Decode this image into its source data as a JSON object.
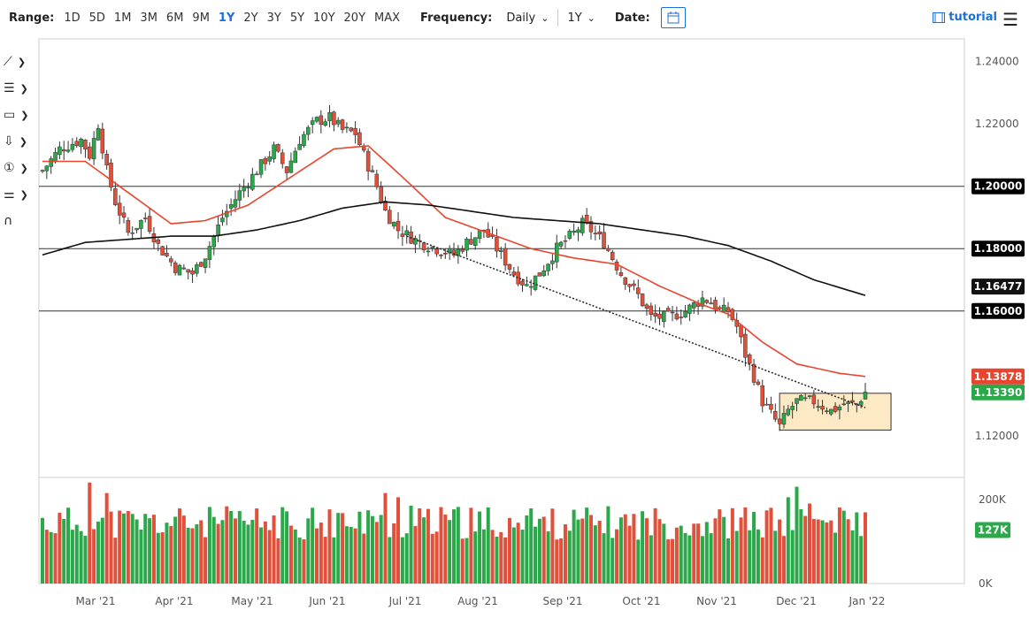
{
  "toolbar": {
    "range_label": "Range:",
    "ranges": [
      "1D",
      "5D",
      "1M",
      "3M",
      "6M",
      "9M",
      "1Y",
      "2Y",
      "3Y",
      "5Y",
      "10Y",
      "20Y",
      "MAX"
    ],
    "active_range": "1Y",
    "frequency_label": "Frequency:",
    "frequency_value": "Daily",
    "period_value": "1Y",
    "date_label": "Date:",
    "tutorial_label": "tutorial"
  },
  "sidebar": {
    "tools": [
      {
        "icon": "trendline-icon",
        "glyph": "⟋"
      },
      {
        "icon": "fibonacci-icon",
        "glyph": "☰"
      },
      {
        "icon": "rectangle-icon",
        "glyph": "▭"
      },
      {
        "icon": "arrow-down-icon",
        "glyph": "⇩"
      },
      {
        "icon": "numbered-marker-icon",
        "glyph": "①"
      },
      {
        "icon": "settings-sliders-icon",
        "glyph": "⚌"
      },
      {
        "icon": "magnet-icon",
        "glyph": "∩"
      }
    ]
  },
  "colors": {
    "up": "#2aa84a",
    "down": "#e0503a",
    "ma_fast": "#e8442e",
    "ma_slow": "#111111",
    "accent": "#1e6fd8",
    "box_fill": "#fde9c4",
    "volume_tag": "#2aa84a"
  },
  "chart_data": [
    {
      "type": "candlestick",
      "x_ticks": [
        "Mar '21",
        "Apr '21",
        "May '21",
        "Jun '21",
        "Jul '21",
        "Aug '21",
        "Sep '21",
        "Oct '21",
        "Nov '21",
        "Dec '21",
        "Jan '22"
      ],
      "y_ticks": [
        "1.24000",
        "1.22000",
        "1.20000",
        "1.18000",
        "1.12000"
      ],
      "ylim": [
        1.1066,
        1.2473
      ],
      "price_anchors": [
        [
          0,
          1.205
        ],
        [
          4,
          1.212
        ],
        [
          9,
          1.215
        ],
        [
          11,
          1.21
        ],
        [
          13,
          1.22
        ],
        [
          15,
          1.205
        ],
        [
          17,
          1.195
        ],
        [
          20,
          1.185
        ],
        [
          24,
          1.19
        ],
        [
          27,
          1.181
        ],
        [
          31,
          1.174
        ],
        [
          35,
          1.172
        ],
        [
          38,
          1.178
        ],
        [
          42,
          1.19
        ],
        [
          46,
          1.198
        ],
        [
          50,
          1.205
        ],
        [
          54,
          1.212
        ],
        [
          57,
          1.205
        ],
        [
          60,
          1.215
        ],
        [
          64,
          1.221
        ],
        [
          67,
          1.222
        ],
        [
          70,
          1.218
        ],
        [
          73,
          1.217
        ],
        [
          75,
          1.21
        ],
        [
          78,
          1.2
        ],
        [
          80,
          1.192
        ],
        [
          83,
          1.186
        ],
        [
          88,
          1.182
        ],
        [
          92,
          1.18
        ],
        [
          96,
          1.178
        ],
        [
          99,
          1.182
        ],
        [
          103,
          1.186
        ],
        [
          106,
          1.18
        ],
        [
          110,
          1.172
        ],
        [
          113,
          1.168
        ],
        [
          116,
          1.172
        ],
        [
          120,
          1.18
        ],
        [
          124,
          1.185
        ],
        [
          126,
          1.188
        ],
        [
          128,
          1.186
        ],
        [
          131,
          1.182
        ],
        [
          135,
          1.172
        ],
        [
          139,
          1.165
        ],
        [
          142,
          1.158
        ],
        [
          146,
          1.158
        ],
        [
          150,
          1.16
        ],
        [
          154,
          1.164
        ],
        [
          156,
          1.163
        ],
        [
          158,
          1.16
        ],
        [
          160,
          1.16
        ],
        [
          162,
          1.155
        ],
        [
          164,
          1.146
        ],
        [
          166,
          1.139
        ],
        [
          168,
          1.131
        ],
        [
          170,
          1.127
        ],
        [
          172,
          1.123
        ],
        [
          174,
          1.128
        ],
        [
          176,
          1.131
        ],
        [
          180,
          1.131
        ],
        [
          184,
          1.128
        ],
        [
          187,
          1.13
        ],
        [
          190,
          1.13
        ],
        [
          192,
          1.134
        ]
      ],
      "current_price": "1.13390",
      "horizontal_levels": [
        {
          "value": "1.20000",
          "price": 1.2
        },
        {
          "value": "1.18000",
          "price": 1.18
        },
        {
          "value": "1.16000",
          "price": 1.16
        }
      ],
      "series": [
        {
          "name": "",
          "kind": "moving_average_fast",
          "last_value": "1.13878",
          "anchors": [
            [
              0,
              1.208
            ],
            [
              10,
              1.208
            ],
            [
              20,
              1.198
            ],
            [
              30,
              1.188
            ],
            [
              38,
              1.189
            ],
            [
              48,
              1.194
            ],
            [
              58,
              1.203
            ],
            [
              68,
              1.212
            ],
            [
              76,
              1.213
            ],
            [
              84,
              1.203
            ],
            [
              94,
              1.19
            ],
            [
              104,
              1.185
            ],
            [
              114,
              1.18
            ],
            [
              124,
              1.177
            ],
            [
              134,
              1.175
            ],
            [
              144,
              1.168
            ],
            [
              154,
              1.162
            ],
            [
              160,
              1.159
            ],
            [
              168,
              1.15
            ],
            [
              176,
              1.143
            ],
            [
              186,
              1.14
            ],
            [
              192,
              1.139
            ]
          ]
        },
        {
          "name": "",
          "kind": "moving_average_slow",
          "last_value": "1.16477",
          "anchors": [
            [
              0,
              1.178
            ],
            [
              10,
              1.182
            ],
            [
              20,
              1.183
            ],
            [
              30,
              1.184
            ],
            [
              40,
              1.184
            ],
            [
              50,
              1.186
            ],
            [
              60,
              1.189
            ],
            [
              70,
              1.193
            ],
            [
              80,
              1.195
            ],
            [
              90,
              1.194
            ],
            [
              100,
              1.192
            ],
            [
              110,
              1.19
            ],
            [
              120,
              1.189
            ],
            [
              130,
              1.188
            ],
            [
              140,
              1.186
            ],
            [
              150,
              1.184
            ],
            [
              160,
              1.181
            ],
            [
              170,
              1.176
            ],
            [
              180,
              1.17
            ],
            [
              192,
              1.165
            ]
          ]
        }
      ],
      "trendline": {
        "from": [
          85,
          1.184
        ],
        "to": [
          192,
          1.129
        ]
      },
      "range_box": {
        "from_index": 172,
        "to_index": 198,
        "top": 1.1336,
        "bottom": 1.1218
      }
    },
    {
      "type": "bar",
      "title": "volume",
      "y_ticks": [
        "200K",
        "0K"
      ],
      "ylim": [
        0,
        250000
      ],
      "last_volume": "127K",
      "base_volume": 160000,
      "spikes": [
        [
          11,
          240000
        ],
        [
          15,
          215000
        ],
        [
          63,
          180000
        ],
        [
          80,
          215000
        ],
        [
          83,
          205000
        ],
        [
          86,
          185000
        ],
        [
          100,
          180000
        ],
        [
          119,
          178000
        ],
        [
          170,
          180000
        ],
        [
          174,
          205000
        ],
        [
          176,
          230000
        ],
        [
          179,
          190000
        ],
        [
          193,
          127000
        ]
      ]
    }
  ]
}
